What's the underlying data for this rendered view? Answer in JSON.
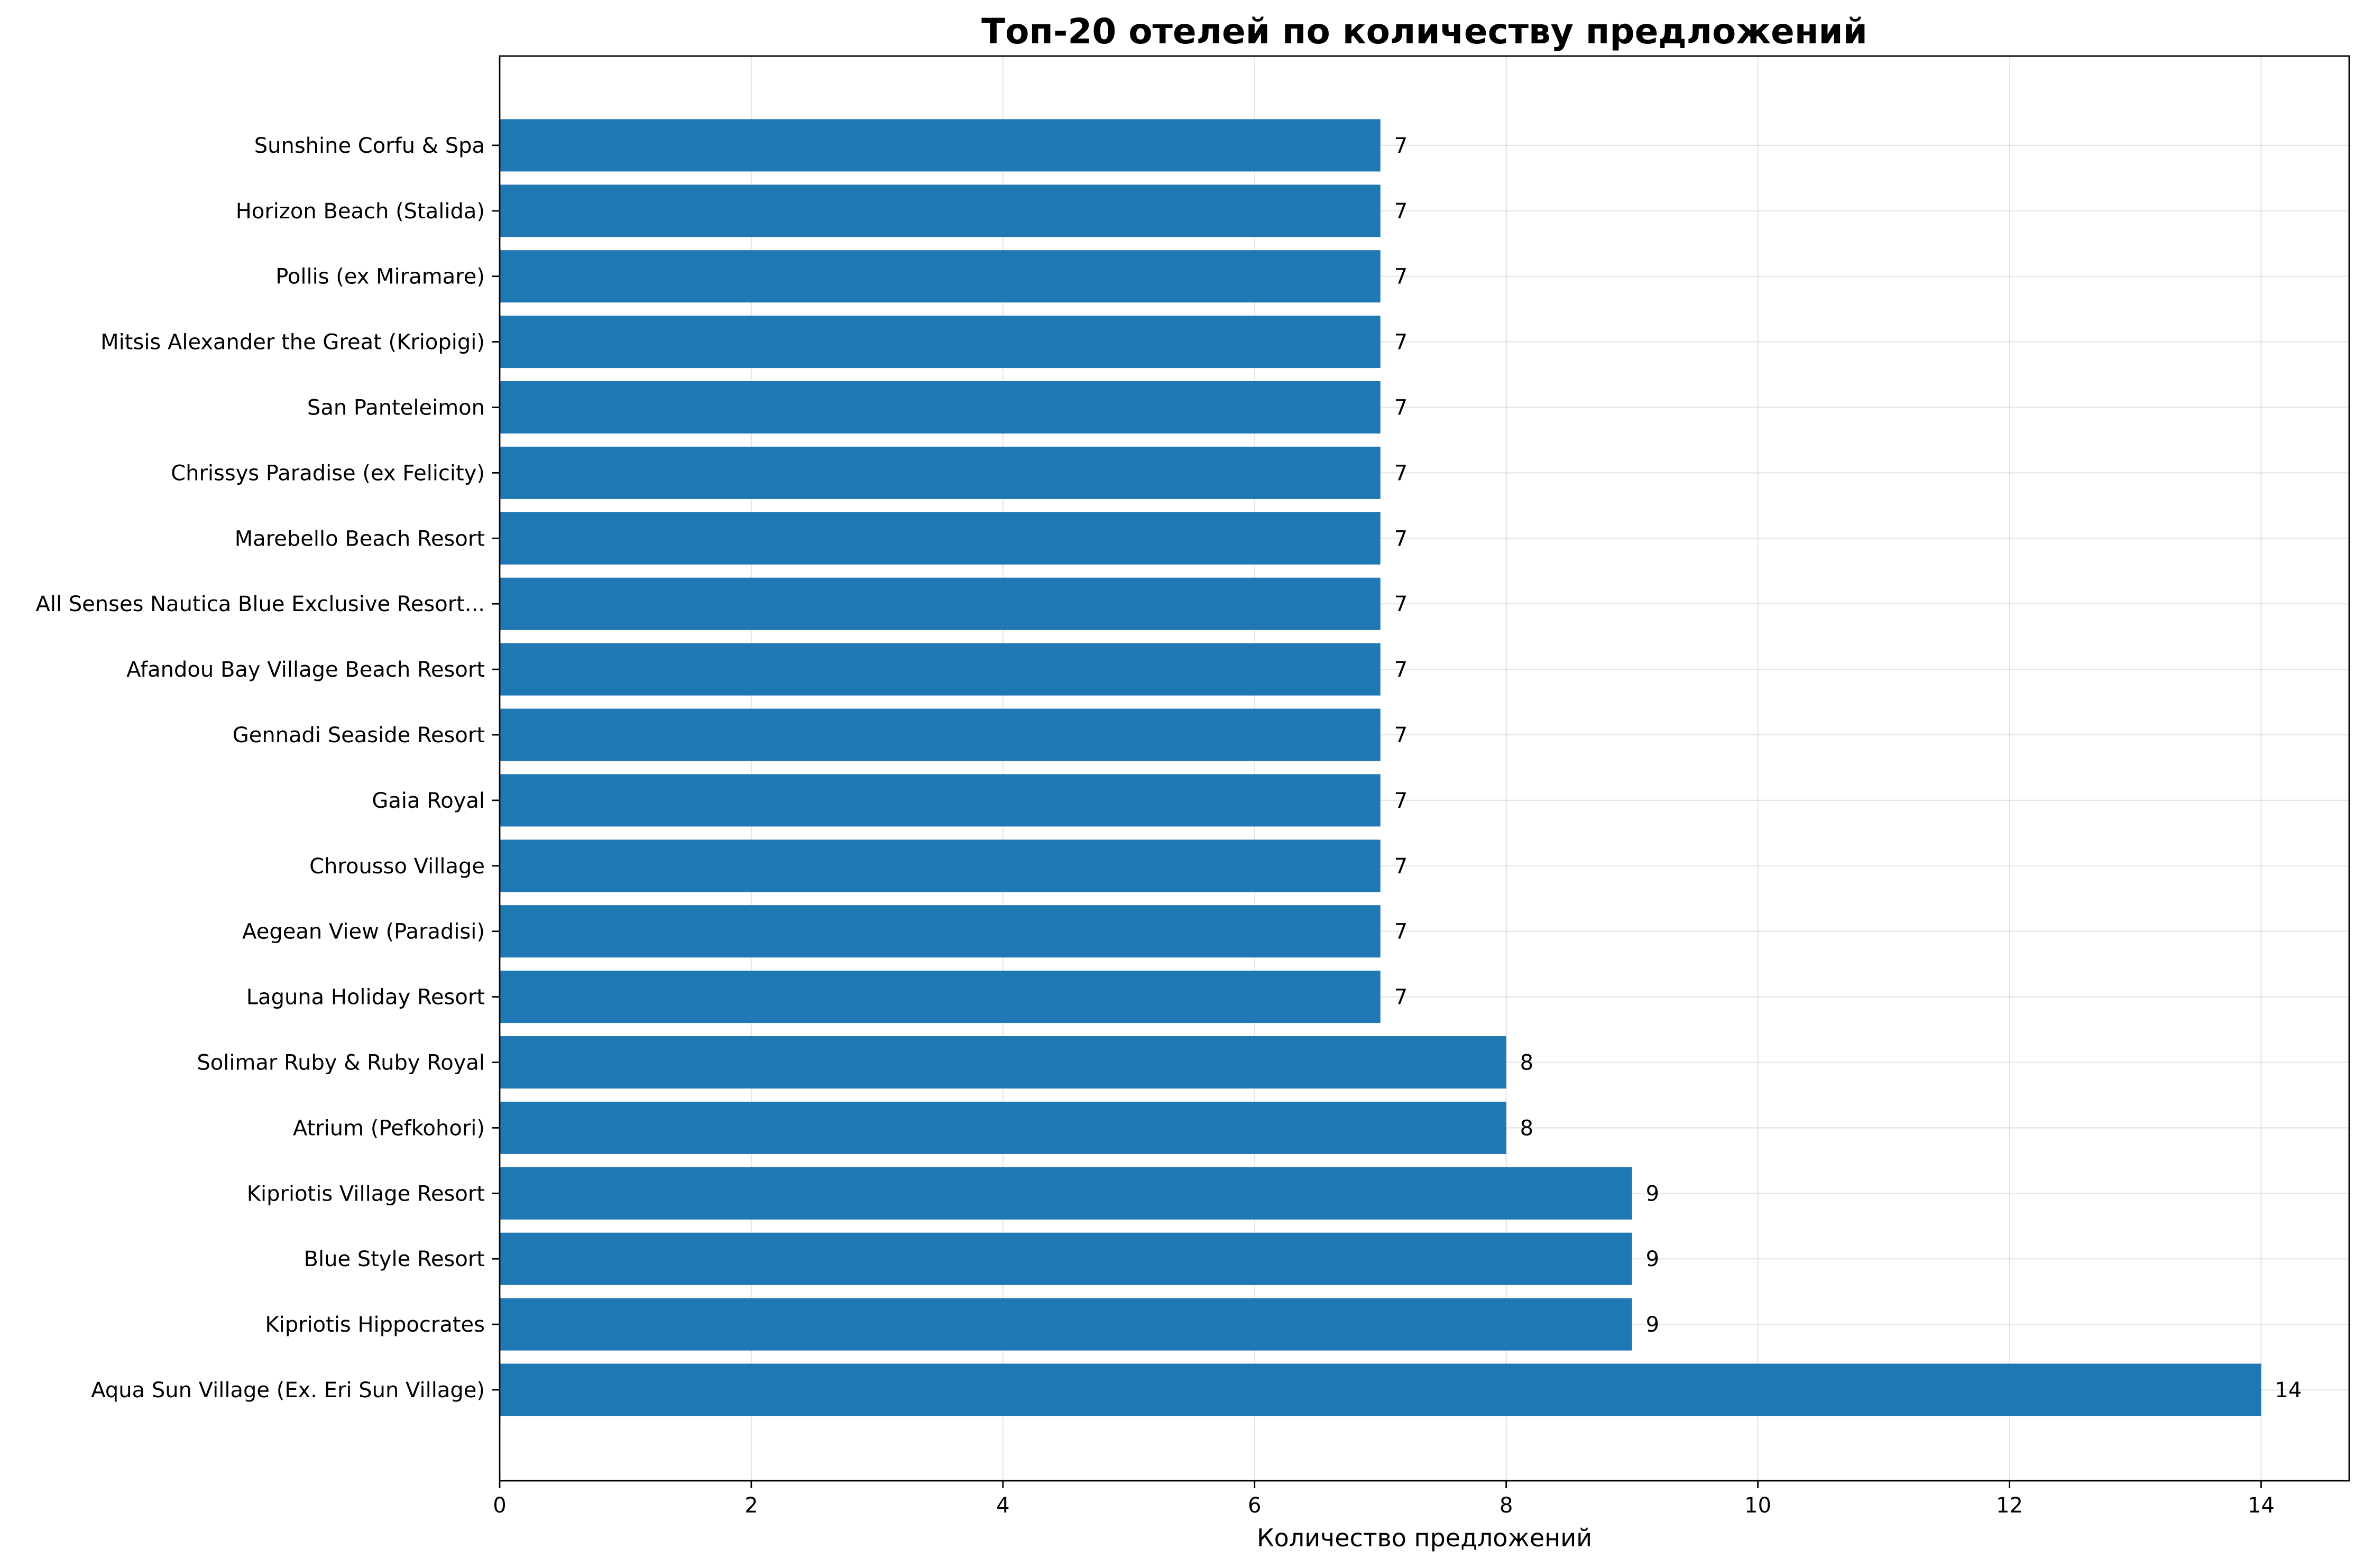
{
  "chart_data": {
    "type": "bar",
    "orientation": "horizontal",
    "title": "Топ-20 отелей по количеству предложений",
    "xlabel": "Количество предложений",
    "ylabel": "",
    "xlim": [
      0,
      14.7
    ],
    "xticks": [
      0,
      2,
      4,
      6,
      8,
      10,
      12,
      14
    ],
    "grid": true,
    "bar_color": "#1f77b4",
    "categories": [
      "Aqua Sun Village (Ex. Eri Sun Village)",
      "Kipriotis Hippocrates",
      "Blue Style Resort",
      "Kipriotis Village Resort",
      "Atrium (Pefkohori)",
      "Solimar Ruby & Ruby Royal",
      "Laguna Holiday Resort",
      "Aegean View (Paradisi)",
      "Chrousso Village",
      "Gaia Royal",
      "Gennadi Seaside Resort",
      "Afandou Bay Village Beach Resort",
      "All Senses Nautica Blue Exclusive Resort...",
      "Marebello Beach Resort",
      "Chrissys Paradise (ex Felicity)",
      "San Panteleimon",
      "Mitsis Alexander the Great (Kriopigi)",
      "Pollis (ex Miramare)",
      "Horizon Beach (Stalida)",
      "Sunshine Corfu & Spa"
    ],
    "values": [
      14,
      9,
      9,
      9,
      8,
      8,
      7,
      7,
      7,
      7,
      7,
      7,
      7,
      7,
      7,
      7,
      7,
      7,
      7,
      7
    ]
  }
}
